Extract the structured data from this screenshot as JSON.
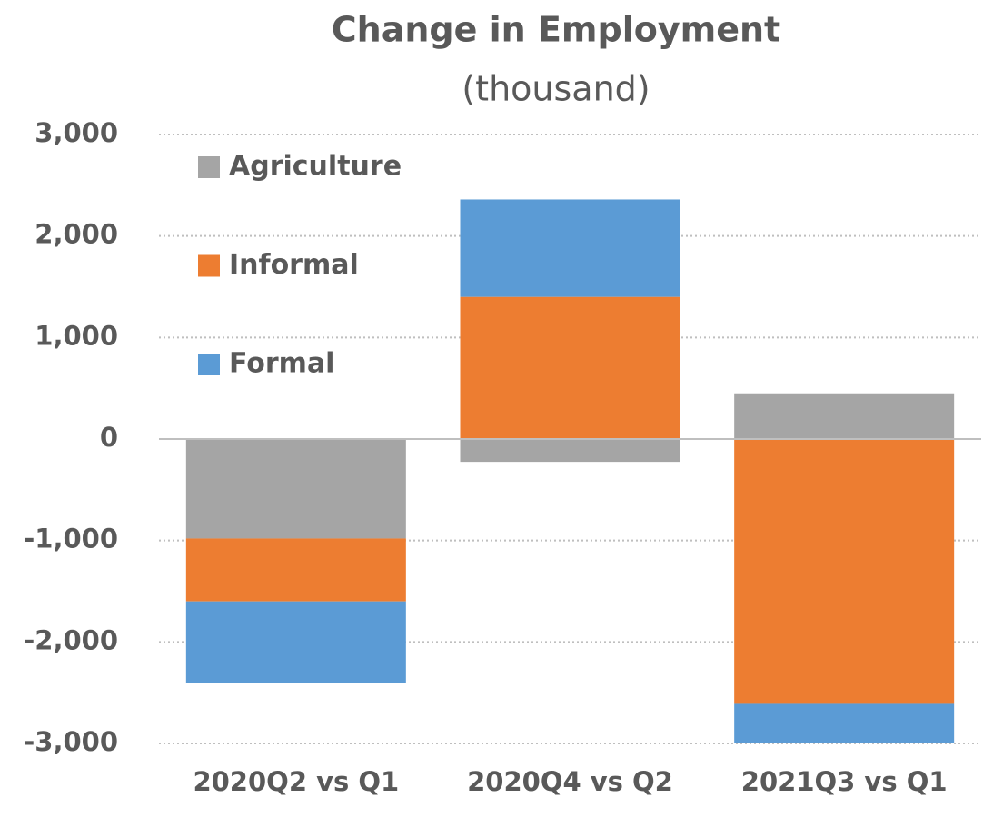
{
  "chart_data": {
    "type": "stacked_bar",
    "title": "Change in Employment",
    "subtitle": "(thousand)",
    "categories": [
      "2020Q2 vs Q1",
      "2020Q4 vs Q2",
      "2021Q3 vs Q1"
    ],
    "series": [
      {
        "name": "Agriculture",
        "color": "#a5a5a5",
        "values": [
          -980,
          -225,
          450
        ]
      },
      {
        "name": "Informal",
        "color": "#ed7d31",
        "values": [
          -620,
          1400,
          -2610
        ]
      },
      {
        "name": "Formal",
        "color": "#5b9bd5",
        "values": [
          -800,
          960,
          -385
        ]
      }
    ],
    "ylim": [
      -3000,
      3000
    ],
    "yticks": [
      {
        "value": -3000,
        "label": "-3,000"
      },
      {
        "value": -2000,
        "label": "-2,000"
      },
      {
        "value": -1000,
        "label": "-1,000"
      },
      0,
      {
        "value": 1000,
        "label": "1,000"
      },
      {
        "value": 2000,
        "label": "2,000"
      },
      {
        "value": 3000,
        "label": "3,000"
      }
    ],
    "grid": true,
    "legend": "top-left"
  }
}
